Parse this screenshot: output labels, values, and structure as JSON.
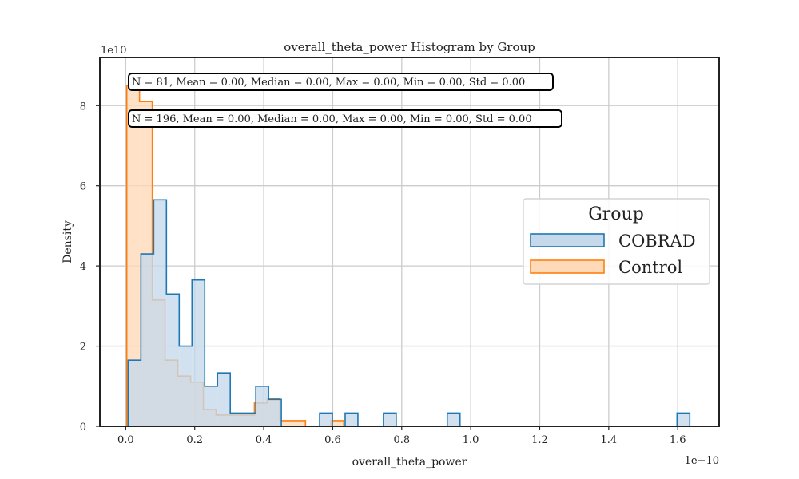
{
  "chart_data": {
    "type": "histogram",
    "title": "overall_theta_power Histogram by Group",
    "xlabel": "overall_theta_power",
    "ylabel": "Density",
    "x_exponent_label": "1e−10",
    "y_exponent_label": "1e10",
    "x_scale": 1e-10,
    "y_scale": 10000000000.0,
    "xlim": [
      -0.075,
      1.72
    ],
    "ylim": [
      0,
      9.2
    ],
    "x_ticks": [
      0.0,
      0.2,
      0.4,
      0.6,
      0.8,
      1.0,
      1.2,
      1.4,
      1.6
    ],
    "x_tick_labels": [
      "0.0",
      "0.2",
      "0.4",
      "0.6",
      "0.8",
      "1.0",
      "1.2",
      "1.4",
      "1.6"
    ],
    "y_ticks": [
      0,
      2,
      4,
      6,
      8
    ],
    "y_tick_labels": [
      "0",
      "2",
      "4",
      "6",
      "8"
    ],
    "grid": true,
    "legend": {
      "title": "Group",
      "placement": "center-right",
      "entries": [
        "COBRAD",
        "Control"
      ]
    },
    "annotations": [
      "N = 81, Mean = 0.00, Median = 0.00, Max = 0.00, Min = 0.00, Std = 0.00",
      "N = 196, Mean = 0.00, Median = 0.00, Max = 0.00, Min = 0.00, Std = 0.00"
    ],
    "series": [
      {
        "name": "COBRAD",
        "color": "#1f77b4",
        "fill": "#c5d9ea",
        "bin_edges": [
          0.007,
          0.044,
          0.081,
          0.118,
          0.155,
          0.192,
          0.229,
          0.266,
          0.303,
          0.34,
          0.377,
          0.414,
          0.451,
          0.488,
          0.525,
          0.562,
          0.599,
          0.636,
          0.673,
          0.71,
          0.747,
          0.784,
          0.821,
          0.858,
          0.895,
          0.932,
          0.969,
          1.006,
          1.043,
          1.08,
          1.117,
          1.154,
          1.191,
          1.228,
          1.265,
          1.302,
          1.339,
          1.376,
          1.413,
          1.45,
          1.487,
          1.524,
          1.561,
          1.598,
          1.635
        ],
        "densities": [
          1.65,
          4.3,
          5.65,
          3.3,
          2.0,
          3.65,
          1.0,
          1.33,
          0.33,
          0.33,
          1.0,
          0.67,
          0,
          0,
          0,
          0.33,
          0,
          0.33,
          0,
          0,
          0.33,
          0,
          0,
          0,
          0,
          0.33,
          0,
          0,
          0,
          0,
          0,
          0,
          0,
          0,
          0,
          0,
          0,
          0,
          0,
          0,
          0,
          0,
          0,
          0.33
        ]
      },
      {
        "name": "Control",
        "color": "#ff7f0e",
        "fill": "#ffd9b8",
        "bin_edges": [
          0.003,
          0.04,
          0.077,
          0.114,
          0.151,
          0.188,
          0.225,
          0.262,
          0.299,
          0.336,
          0.373,
          0.41,
          0.447,
          0.484,
          0.521,
          0.558,
          0.595,
          0.632,
          0.669
        ],
        "densities": [
          8.5,
          8.1,
          3.15,
          1.65,
          1.25,
          1.1,
          0.42,
          0.28,
          0.28,
          0.28,
          0.58,
          0.7,
          0.14,
          0.14,
          0,
          0,
          0.14,
          0
        ]
      }
    ]
  }
}
